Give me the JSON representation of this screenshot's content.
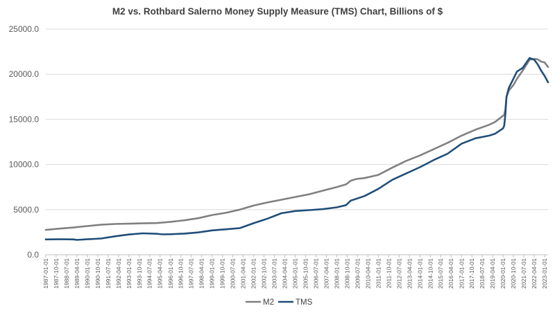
{
  "chart_data": {
    "type": "line",
    "title": "M2 vs. Rothbard Salerno Money Supply Measure (TMS) Chart, Billions of $",
    "xlabel": "",
    "ylabel": "",
    "ylim": [
      0,
      25000
    ],
    "y_ticks": [
      "0.0",
      "5000.0",
      "10000.0",
      "15000.0",
      "20000.0",
      "25000.0"
    ],
    "x_range": [
      "1987-01-01",
      "2023-04-01"
    ],
    "x_tick_labels": [
      "1987-01-01",
      "1987-10-01",
      "1988-07-01",
      "1989-04-01",
      "1990-01-01",
      "1990-10-01",
      "1991-07-01",
      "1992-04-01",
      "1993-01-01",
      "1993-10-01",
      "1994-07-01",
      "1995-04-01",
      "1996-01-01",
      "1996-10-01",
      "1997-07-01",
      "1998-04-01",
      "1999-01-01",
      "1999-10-01",
      "2000-07-01",
      "2001-04-01",
      "2002-01-01",
      "2002-10-01",
      "2003-07-01",
      "2004-04-01",
      "2005-01-01",
      "2005-10-01",
      "2006-07-01",
      "2007-04-01",
      "2008-01-01",
      "2008-10-01",
      "2009-07-01",
      "2010-04-01",
      "2011-01-01",
      "2011-10-01",
      "2012-07-01",
      "2013-04-01",
      "2014-01-01",
      "2014-10-01",
      "2015-07-01",
      "2016-04-01",
      "2017-01-01",
      "2017-10-01",
      "2018-07-01",
      "2019-04-01",
      "2020-01-01",
      "2020-10-01",
      "2021-07-01",
      "2022-04-01",
      "2023-01-01"
    ],
    "grid": true,
    "legend_position": "bottom",
    "series": [
      {
        "name": "M2",
        "color": "#808080",
        "points": [
          [
            "1987-01-01",
            2750
          ],
          [
            "1988-01-01",
            2900
          ],
          [
            "1989-01-01",
            3020
          ],
          [
            "1990-01-01",
            3180
          ],
          [
            "1991-01-01",
            3330
          ],
          [
            "1992-01-01",
            3410
          ],
          [
            "1993-01-01",
            3440
          ],
          [
            "1994-01-01",
            3480
          ],
          [
            "1995-01-01",
            3510
          ],
          [
            "1996-01-01",
            3650
          ],
          [
            "1997-01-01",
            3820
          ],
          [
            "1998-01-01",
            4050
          ],
          [
            "1999-01-01",
            4400
          ],
          [
            "2000-01-01",
            4650
          ],
          [
            "2001-01-01",
            5000
          ],
          [
            "2002-01-01",
            5450
          ],
          [
            "2003-01-01",
            5800
          ],
          [
            "2004-01-01",
            6100
          ],
          [
            "2005-01-01",
            6400
          ],
          [
            "2006-01-01",
            6700
          ],
          [
            "2007-01-01",
            7100
          ],
          [
            "2008-01-01",
            7500
          ],
          [
            "2008-09-01",
            7800
          ],
          [
            "2009-01-01",
            8200
          ],
          [
            "2009-06-01",
            8400
          ],
          [
            "2010-01-01",
            8500
          ],
          [
            "2011-01-01",
            8850
          ],
          [
            "2012-01-01",
            9650
          ],
          [
            "2013-01-01",
            10400
          ],
          [
            "2014-01-01",
            11000
          ],
          [
            "2015-01-01",
            11700
          ],
          [
            "2016-01-01",
            12400
          ],
          [
            "2017-01-01",
            13200
          ],
          [
            "2018-01-01",
            13850
          ],
          [
            "2019-01-01",
            14400
          ],
          [
            "2019-06-01",
            14700
          ],
          [
            "2020-01-01",
            15400
          ],
          [
            "2020-02-01",
            15500
          ],
          [
            "2020-03-01",
            16100
          ],
          [
            "2020-04-01",
            17500
          ],
          [
            "2020-06-01",
            18200
          ],
          [
            "2020-10-01",
            18800
          ],
          [
            "2021-01-01",
            19500
          ],
          [
            "2021-06-01",
            20400
          ],
          [
            "2021-12-01",
            21600
          ],
          [
            "2022-04-01",
            21700
          ],
          [
            "2022-07-01",
            21650
          ],
          [
            "2022-10-01",
            21400
          ],
          [
            "2023-01-01",
            21300
          ],
          [
            "2023-04-01",
            20800
          ]
        ]
      },
      {
        "name": "TMS",
        "color": "#1f4e79",
        "points": [
          [
            "1987-01-01",
            1700
          ],
          [
            "1988-01-01",
            1720
          ],
          [
            "1989-01-01",
            1700
          ],
          [
            "1989-04-01",
            1650
          ],
          [
            "1990-01-01",
            1720
          ],
          [
            "1991-01-01",
            1800
          ],
          [
            "1992-01-01",
            2050
          ],
          [
            "1993-01-01",
            2250
          ],
          [
            "1994-01-01",
            2380
          ],
          [
            "1995-01-01",
            2320
          ],
          [
            "1995-06-01",
            2260
          ],
          [
            "1996-01-01",
            2280
          ],
          [
            "1997-01-01",
            2350
          ],
          [
            "1998-01-01",
            2480
          ],
          [
            "1999-01-01",
            2700
          ],
          [
            "2000-01-01",
            2820
          ],
          [
            "2001-01-01",
            2950
          ],
          [
            "2002-01-01",
            3500
          ],
          [
            "2003-01-01",
            4000
          ],
          [
            "2004-01-01",
            4600
          ],
          [
            "2005-01-01",
            4850
          ],
          [
            "2006-01-01",
            4950
          ],
          [
            "2007-01-01",
            5050
          ],
          [
            "2008-01-01",
            5250
          ],
          [
            "2008-09-01",
            5500
          ],
          [
            "2009-01-01",
            6000
          ],
          [
            "2010-01-01",
            6500
          ],
          [
            "2011-01-01",
            7300
          ],
          [
            "2012-01-01",
            8300
          ],
          [
            "2013-01-01",
            9000
          ],
          [
            "2014-01-01",
            9700
          ],
          [
            "2015-01-01",
            10500
          ],
          [
            "2016-01-01",
            11200
          ],
          [
            "2017-01-01",
            12300
          ],
          [
            "2018-01-01",
            12900
          ],
          [
            "2019-01-01",
            13200
          ],
          [
            "2019-06-01",
            13400
          ],
          [
            "2020-01-01",
            14000
          ],
          [
            "2020-02-01",
            14300
          ],
          [
            "2020-03-01",
            15500
          ],
          [
            "2020-04-01",
            17500
          ],
          [
            "2020-06-01",
            18500
          ],
          [
            "2020-10-01",
            19500
          ],
          [
            "2021-01-01",
            20300
          ],
          [
            "2021-06-01",
            20700
          ],
          [
            "2021-12-01",
            21800
          ],
          [
            "2022-04-01",
            21600
          ],
          [
            "2022-07-01",
            21100
          ],
          [
            "2022-10-01",
            20400
          ],
          [
            "2023-01-01",
            19800
          ],
          [
            "2023-04-01",
            19100
          ]
        ]
      }
    ]
  }
}
